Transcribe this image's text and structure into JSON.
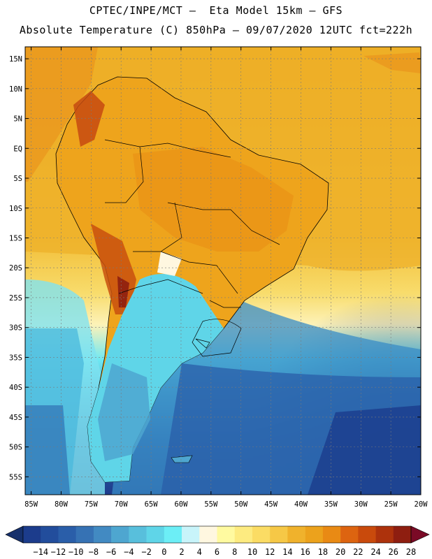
{
  "header": {
    "line1": "CPTEC/INPE/MCT –  Eta Model 15km – GFS",
    "line2": "Absolute Temperature (C) 850hPa – 09/07/2020 12UTC fct=222h"
  },
  "map": {
    "lat_range": [
      -58,
      17
    ],
    "lon_range": [
      -86,
      -20
    ],
    "lat_ticks": [
      {
        "value": 15,
        "label": "15N"
      },
      {
        "value": 10,
        "label": "10N"
      },
      {
        "value": 5,
        "label": "5N"
      },
      {
        "value": 0,
        "label": "EQ"
      },
      {
        "value": -5,
        "label": "5S"
      },
      {
        "value": -10,
        "label": "10S"
      },
      {
        "value": -15,
        "label": "15S"
      },
      {
        "value": -20,
        "label": "20S"
      },
      {
        "value": -25,
        "label": "25S"
      },
      {
        "value": -30,
        "label": "30S"
      },
      {
        "value": -35,
        "label": "35S"
      },
      {
        "value": -40,
        "label": "40S"
      },
      {
        "value": -45,
        "label": "45S"
      },
      {
        "value": -50,
        "label": "50S"
      },
      {
        "value": -55,
        "label": "55S"
      }
    ],
    "lon_ticks": [
      {
        "value": -85,
        "label": "85W"
      },
      {
        "value": -80,
        "label": "80W"
      },
      {
        "value": -75,
        "label": "75W"
      },
      {
        "value": -70,
        "label": "70W"
      },
      {
        "value": -65,
        "label": "65W"
      },
      {
        "value": -60,
        "label": "60W"
      },
      {
        "value": -55,
        "label": "55W"
      },
      {
        "value": -50,
        "label": "50W"
      },
      {
        "value": -45,
        "label": "45W"
      },
      {
        "value": -40,
        "label": "40W"
      },
      {
        "value": -35,
        "label": "35W"
      },
      {
        "value": -30,
        "label": "30W"
      },
      {
        "value": -25,
        "label": "25W"
      },
      {
        "value": -20,
        "label": "20W"
      }
    ],
    "gridlines": true
  },
  "colorbar": {
    "labels": [
      "−14",
      "−12",
      "−10",
      "−8",
      "−6",
      "−4",
      "−2",
      "0",
      "2",
      "4",
      "6",
      "8",
      "10",
      "12",
      "14",
      "16",
      "18",
      "20",
      "22",
      "24",
      "26",
      "28"
    ],
    "colors": [
      "#1c3c8c",
      "#224d9c",
      "#2a5ea9",
      "#3672b4",
      "#428ac2",
      "#4ea6d0",
      "#58bfdc",
      "#5fd5e8",
      "#6ceef6",
      "#c8f4fa",
      "#fff7e0",
      "#fffaa0",
      "#fdeb80",
      "#fbdc64",
      "#f6c846",
      "#f0b22c",
      "#eca21c",
      "#e98a14",
      "#dd6410",
      "#c94a0c",
      "#ad320c",
      "#8e1e10"
    ],
    "end_low": "#16306c",
    "end_high": "#7a0a26"
  }
}
